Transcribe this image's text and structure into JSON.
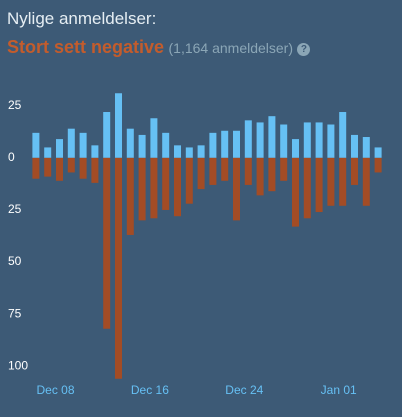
{
  "header": {
    "title": "Nylige anmeldelser:",
    "summary": "Stort sett negative",
    "count": "(1,164 anmeldelser)"
  },
  "chart_data": {
    "type": "diverging-bar",
    "categories": [
      null,
      null,
      "Dec 08",
      null,
      null,
      null,
      null,
      null,
      null,
      null,
      "Dec 16",
      null,
      null,
      null,
      null,
      null,
      null,
      null,
      "Dec 24",
      null,
      null,
      null,
      null,
      null,
      null,
      null,
      "Jan 01",
      null,
      null,
      null
    ],
    "series": [
      {
        "color": "#66c0f4",
        "values": [
          12,
          5,
          9,
          14,
          12,
          6,
          22,
          31,
          14,
          11,
          19,
          12,
          6,
          5,
          6,
          12,
          13,
          13,
          18,
          17,
          20,
          16,
          9,
          17,
          17,
          16,
          22,
          11,
          10,
          5
        ]
      },
      {
        "color": "#a34c25",
        "values": [
          -10,
          -9,
          -11,
          -7,
          -10,
          -12,
          -82,
          -106,
          -37,
          -30,
          -29,
          -25,
          -28,
          -22,
          -15,
          -13,
          -11,
          -30,
          -13,
          -18,
          -16,
          -11,
          -33,
          -29,
          -26,
          -23,
          -23,
          -13,
          -23,
          -7
        ]
      }
    ],
    "ylim": [
      -109,
      34
    ],
    "yticks": [
      25,
      0,
      {
        "value": -25,
        "label": "25"
      },
      {
        "value": -50,
        "label": "50"
      },
      {
        "value": -75,
        "label": "75"
      },
      {
        "value": -100,
        "label": "100"
      }
    ]
  }
}
